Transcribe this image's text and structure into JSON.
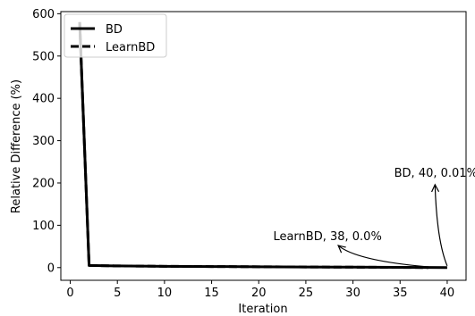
{
  "chart_data": {
    "type": "line",
    "xlabel": "Iteration",
    "ylabel": "Relative Difference (%)",
    "xlim": [
      -1.0,
      42.0
    ],
    "ylim": [
      -30,
      605
    ],
    "xticks": [
      0,
      5,
      10,
      15,
      20,
      25,
      30,
      35,
      40
    ],
    "yticks": [
      0,
      100,
      200,
      300,
      400,
      500,
      600
    ],
    "grid": false,
    "legend_position": "top-left",
    "series": [
      {
        "name": "BD",
        "style": "solid",
        "color": "#000000",
        "x": [
          1,
          2,
          5,
          10,
          15,
          20,
          25,
          30,
          35,
          38,
          40
        ],
        "y": [
          580,
          5,
          4,
          3,
          2.5,
          2,
          1.5,
          1,
          0.5,
          0.2,
          0.01
        ]
      },
      {
        "name": "LearnBD",
        "style": "dashed",
        "color": "#000000",
        "x": [
          1,
          2,
          5,
          10,
          15,
          20,
          25,
          30,
          35,
          38
        ],
        "y": [
          580,
          5,
          4,
          3,
          2.5,
          2,
          1.5,
          1,
          0.5,
          0.0
        ]
      }
    ],
    "annotations": [
      {
        "text": "BD, 40, 0.01%",
        "point": [
          40,
          0.01
        ],
        "text_at": [
          38.8,
          215
        ]
      },
      {
        "text": "LearnBD, 38, 0.0%",
        "point": [
          38,
          0.0
        ],
        "text_at": [
          27.3,
          65
        ]
      }
    ]
  }
}
